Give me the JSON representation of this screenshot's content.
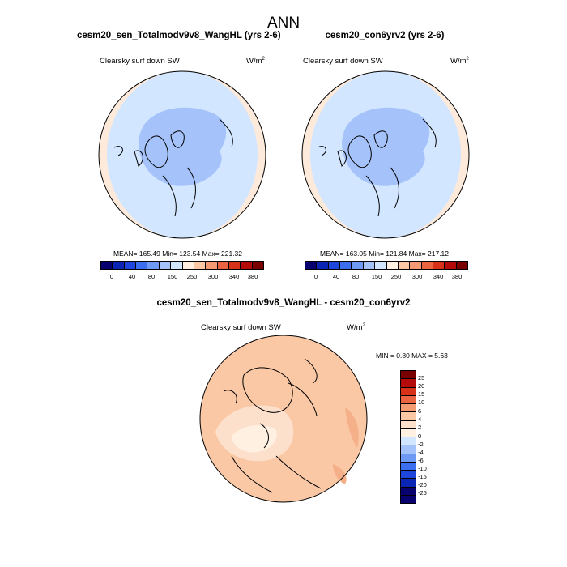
{
  "title": "ANN",
  "panels": [
    {
      "case": "cesm20_sen_Totalmodv9v8_WangHL (yrs 2-6)",
      "variable": "Clearsky surf down SW",
      "units_base": "W/m",
      "units_exp": "2",
      "stats": "MEAN= 165.49  Min= 123.54  Max= 221.32"
    },
    {
      "case": "cesm20_con6yrv2 (yrs 2-6)",
      "variable": "Clearsky surf down SW",
      "units_base": "W/m",
      "units_exp": "2",
      "stats": "MEAN= 163.05  Min= 121.84  Max= 217.12"
    }
  ],
  "diff_panel": {
    "case": "cesm20_sen_Totalmodv9v8_WangHL - cesm20_con6yrv2",
    "variable": "Clearsky surf down SW",
    "units_base": "W/m",
    "units_exp": "2",
    "stats": "MIN =   0.80 MAX =   5.63"
  },
  "colorbar_main": {
    "labels": [
      "0",
      "40",
      "80",
      "150",
      "250",
      "300",
      "340",
      "380"
    ],
    "colors": [
      "#08006e",
      "#0a24b4",
      "#1e46dc",
      "#3c6ef0",
      "#6e9af5",
      "#a5c3fa",
      "#d2e6ff",
      "#fff0e1",
      "#fac8a5",
      "#f59b73",
      "#eb6441",
      "#d73219",
      "#b40a0a",
      "#780000"
    ]
  },
  "colorbar_diff": {
    "labels": [
      "25",
      "20",
      "15",
      "10",
      "6",
      "4",
      "2",
      "0",
      "-2",
      "-4",
      "-6",
      "-10",
      "-15",
      "-20",
      "-25"
    ],
    "colors": [
      "#780000",
      "#b40a0a",
      "#d73219",
      "#eb6441",
      "#f59b73",
      "#fac8a5",
      "#fde0cc",
      "#fff0e1",
      "#d2e6ff",
      "#a5c3fa",
      "#6e9af5",
      "#3c6ef0",
      "#1e46dc",
      "#0a24b4",
      "#08006e"
    ]
  }
}
